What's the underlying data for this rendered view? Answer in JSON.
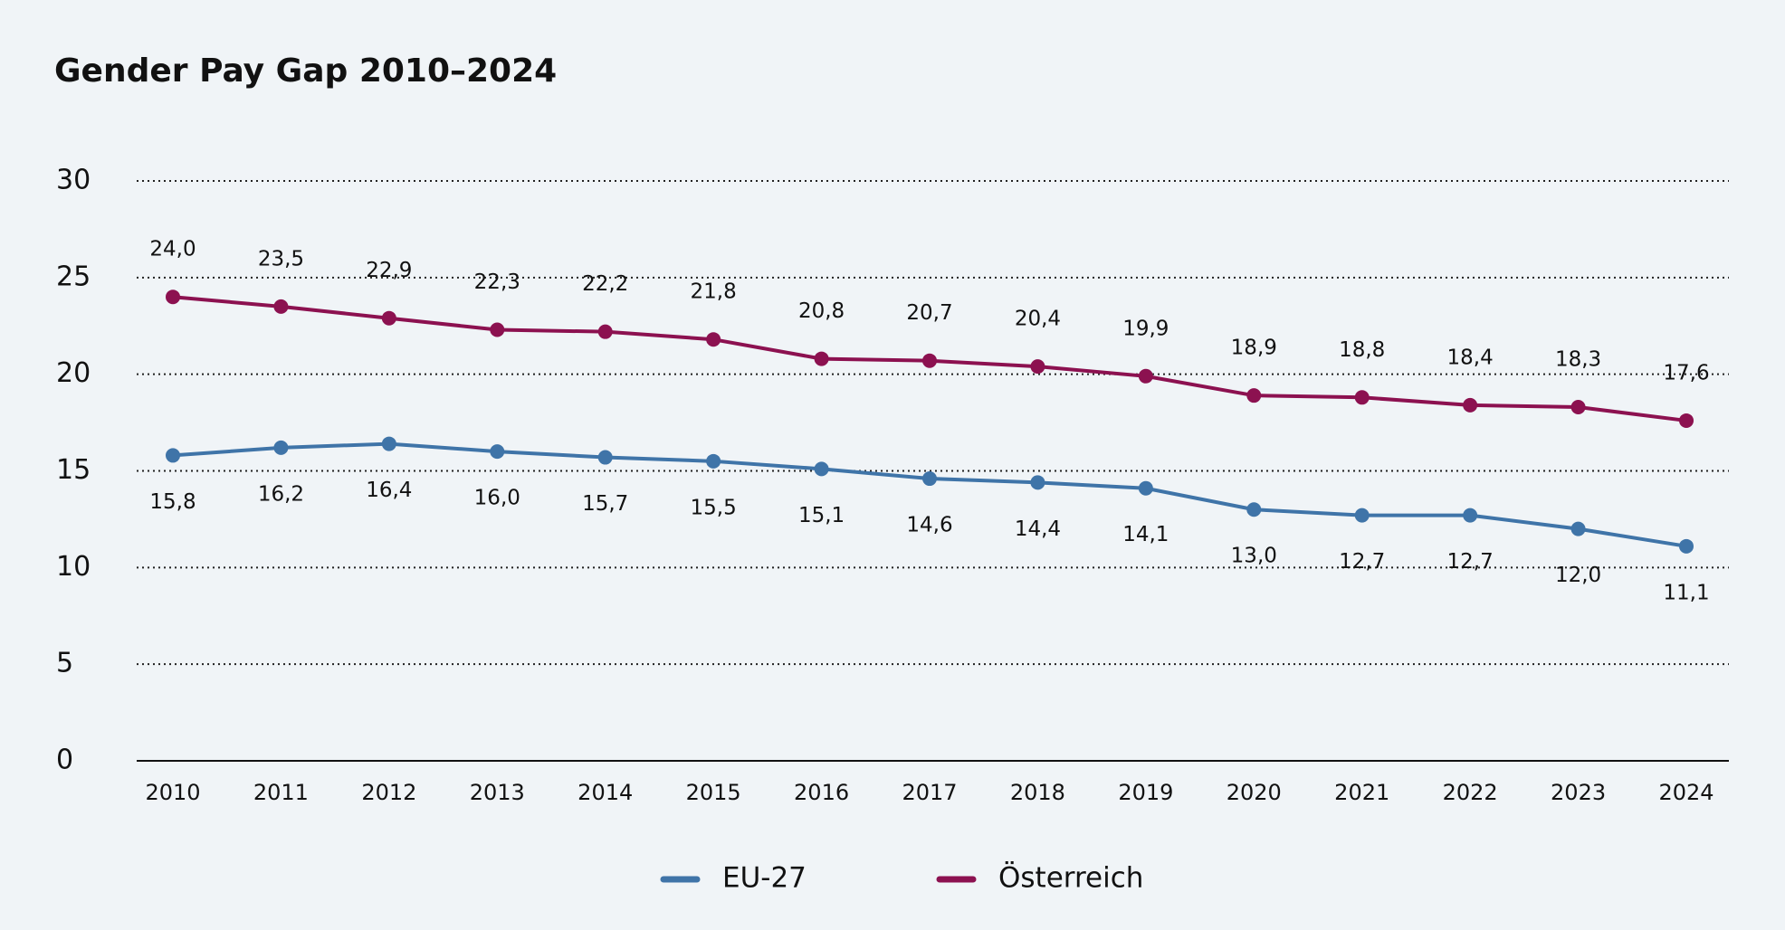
{
  "chart_data": {
    "type": "line",
    "title": "Gender Pay Gap 2010–2024",
    "categories": [
      "2010",
      "2011",
      "2012",
      "2013",
      "2014",
      "2015",
      "2016",
      "2017",
      "2018",
      "2019",
      "2020",
      "2021",
      "2022",
      "2023",
      "2024"
    ],
    "series": [
      {
        "name": "EU-27",
        "color": "#3f74a8",
        "values": [
          15.8,
          16.2,
          16.4,
          16.0,
          15.7,
          15.5,
          15.1,
          14.6,
          14.4,
          14.1,
          13.0,
          12.7,
          12.7,
          12.0,
          11.1
        ],
        "value_labels": [
          "15,8",
          "16,2",
          "16,4",
          "16,0",
          "15,7",
          "15,5",
          "15,1",
          "14,6",
          "14,4",
          "14,1",
          "13,0",
          "12,7",
          "12,7",
          "12,0",
          "11,1"
        ]
      },
      {
        "name": "Österreich",
        "color": "#8c1150",
        "values": [
          24.0,
          23.5,
          22.9,
          22.3,
          22.2,
          21.8,
          20.8,
          20.7,
          20.4,
          19.9,
          18.9,
          18.8,
          18.4,
          18.3,
          17.6
        ],
        "value_labels": [
          "24,0",
          "23,5",
          "22,9",
          "22,3",
          "22,2",
          "21,8",
          "20,8",
          "20,7",
          "20,4",
          "19,9",
          "18,9",
          "18,8",
          "18,4",
          "18,3",
          "17,6"
        ]
      }
    ],
    "ylim": [
      0,
      30
    ],
    "yticks": [
      0,
      5,
      10,
      15,
      20,
      25,
      30
    ],
    "grid": true,
    "legend": "bottom"
  }
}
